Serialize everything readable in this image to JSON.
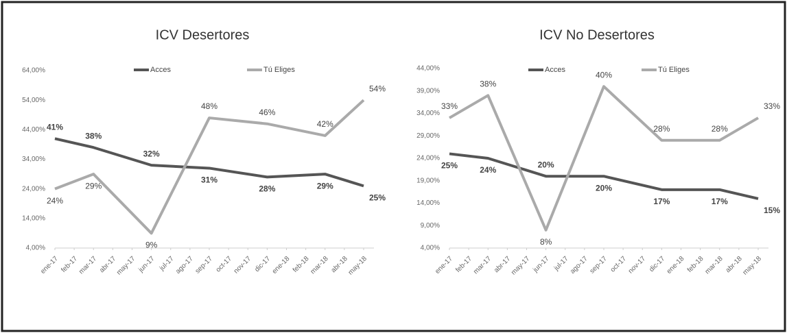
{
  "chart_data": [
    {
      "type": "line",
      "title": "ICV Desertores",
      "x": [
        0,
        2,
        5,
        8,
        11,
        14,
        16
      ],
      "xlim": [
        0,
        16
      ],
      "xticks": [
        {
          "value": 0,
          "label": "ene-17"
        },
        {
          "value": 1,
          "label": "feb-17"
        },
        {
          "value": 2,
          "label": "mar-17"
        },
        {
          "value": 3,
          "label": "abr-17"
        },
        {
          "value": 4,
          "label": "may-17"
        },
        {
          "value": 5,
          "label": "jun-17"
        },
        {
          "value": 6,
          "label": "jul-17"
        },
        {
          "value": 7,
          "label": "ago-17"
        },
        {
          "value": 8,
          "label": "sep-17"
        },
        {
          "value": 9,
          "label": "oct-17"
        },
        {
          "value": 10,
          "label": "nov-17"
        },
        {
          "value": 11,
          "label": "dic-17"
        },
        {
          "value": 12,
          "label": "ene-18"
        },
        {
          "value": 13,
          "label": "feb-18"
        },
        {
          "value": 14,
          "label": "mar-18"
        },
        {
          "value": 15,
          "label": "abr-18"
        },
        {
          "value": 16,
          "label": "may-18"
        }
      ],
      "ylim": [
        4,
        64
      ],
      "yticks": [
        {
          "value": 4,
          "label": "4,00%"
        },
        {
          "value": 14,
          "label": "14,00%"
        },
        {
          "value": 24,
          "label": "24,00%"
        },
        {
          "value": 34,
          "label": "34,00%"
        },
        {
          "value": 44,
          "label": "44,00%"
        },
        {
          "value": 54,
          "label": "54,00%"
        },
        {
          "value": 64,
          "label": "64,00%"
        }
      ],
      "legend": "top",
      "series": [
        {
          "name": "Acces",
          "color": "#555555",
          "values": [
            41,
            38,
            32,
            31,
            28,
            29,
            25
          ],
          "value_labels": [
            "41%",
            "38%",
            "32%",
            "31%",
            "28%",
            "29%",
            "25%"
          ]
        },
        {
          "name": "Tú Eliges",
          "color": "#aaaaaa",
          "values": [
            24,
            29,
            9,
            48,
            46,
            42,
            54
          ],
          "value_labels": [
            "24%",
            "29%",
            "9%",
            "48%",
            "46%",
            "42%",
            "54%"
          ]
        }
      ]
    },
    {
      "type": "line",
      "title": "ICV No Desertores",
      "x": [
        0,
        2,
        5,
        8,
        11,
        14,
        16
      ],
      "xlim": [
        0,
        16
      ],
      "xticks": [
        {
          "value": 0,
          "label": "ene-17"
        },
        {
          "value": 1,
          "label": "feb-17"
        },
        {
          "value": 2,
          "label": "mar-17"
        },
        {
          "value": 3,
          "label": "abr-17"
        },
        {
          "value": 4,
          "label": "may-17"
        },
        {
          "value": 5,
          "label": "jun-17"
        },
        {
          "value": 6,
          "label": "jul-17"
        },
        {
          "value": 7,
          "label": "ago-17"
        },
        {
          "value": 8,
          "label": "sep-17"
        },
        {
          "value": 9,
          "label": "oct-17"
        },
        {
          "value": 10,
          "label": "nov-17"
        },
        {
          "value": 11,
          "label": "dic-17"
        },
        {
          "value": 12,
          "label": "ene-18"
        },
        {
          "value": 13,
          "label": "feb-18"
        },
        {
          "value": 14,
          "label": "mar-18"
        },
        {
          "value": 15,
          "label": "abr-18"
        },
        {
          "value": 16,
          "label": "may-18"
        }
      ],
      "ylim": [
        4,
        44
      ],
      "yticks": [
        {
          "value": 4,
          "label": "4,00%"
        },
        {
          "value": 9,
          "label": "9,00%"
        },
        {
          "value": 14,
          "label": "14,00%"
        },
        {
          "value": 19,
          "label": "19,00%"
        },
        {
          "value": 24,
          "label": "24,00%"
        },
        {
          "value": 29,
          "label": "29,00%"
        },
        {
          "value": 34,
          "label": "34,00%"
        },
        {
          "value": 39,
          "label": "39,00%"
        },
        {
          "value": 44,
          "label": "44,00%"
        }
      ],
      "legend": "top",
      "series": [
        {
          "name": "Acces",
          "color": "#555555",
          "values": [
            25,
            24,
            20,
            20,
            17,
            17,
            15
          ],
          "value_labels": [
            "25%",
            "24%",
            "20%",
            "20%",
            "17%",
            "17%",
            "15%"
          ]
        },
        {
          "name": "Tú Eliges",
          "color": "#aaaaaa",
          "values": [
            33,
            38,
            8,
            40,
            28,
            28,
            33
          ],
          "value_labels": [
            "33%",
            "38%",
            "8%",
            "40%",
            "28%",
            "28%",
            "33%"
          ]
        }
      ]
    }
  ]
}
